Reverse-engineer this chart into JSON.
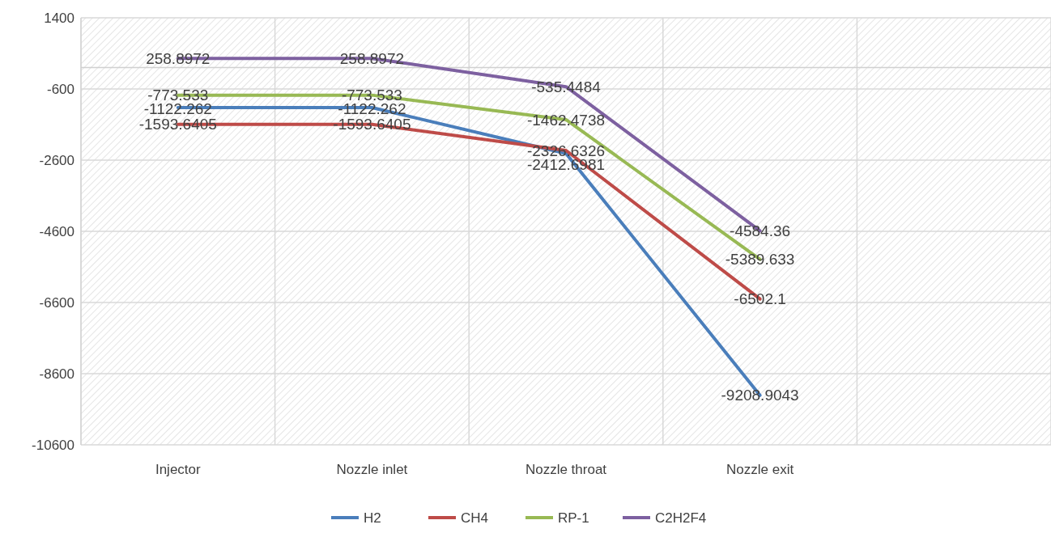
{
  "chart_data": {
    "type": "line",
    "categories": [
      "Injector",
      "Nozzle inlet",
      "Nozzle throat",
      "Nozzle exit",
      null
    ],
    "series": [
      {
        "name": "H2",
        "color": "#4a7ebb",
        "values": [
          -1122.262,
          -1122.262,
          -2412.6981,
          -9208.9043,
          null
        ]
      },
      {
        "name": "CH4",
        "color": "#be4b48",
        "values": [
          -1593.6405,
          -1593.6405,
          -2326.6326,
          -6502.1,
          null
        ]
      },
      {
        "name": "RP-1",
        "color": "#98b954",
        "values": [
          -773.533,
          -773.533,
          -1462.4738,
          -5389.633,
          null
        ]
      },
      {
        "name": "C2H2F4",
        "color": "#7d60a0",
        "values": [
          258.8972,
          258.8972,
          -535.4484,
          -4584.36,
          null
        ]
      }
    ],
    "ylim": [
      -10600,
      1400
    ],
    "yticks": [
      1400,
      -600,
      -2600,
      -4600,
      -6600,
      -8600,
      -10600
    ],
    "grid": true,
    "legend": "bottom",
    "data_labels": true,
    "marker": "none",
    "line_style": "solid"
  }
}
